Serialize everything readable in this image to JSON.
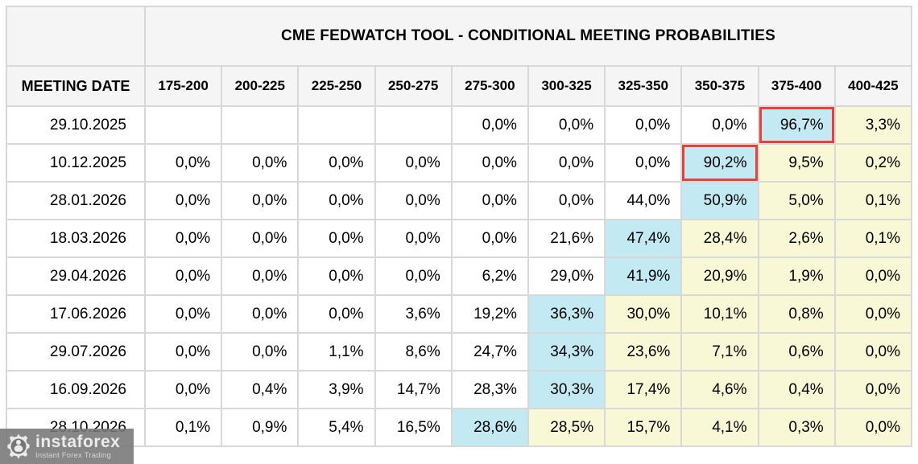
{
  "chart_data": {
    "type": "table",
    "title": "CME FEDWATCH TOOL - CONDITIONAL MEETING PROBABILITIES",
    "row_header": "MEETING DATE",
    "rate_bins": [
      "175-200",
      "200-225",
      "225-250",
      "250-275",
      "275-300",
      "300-325",
      "325-350",
      "350-375",
      "375-400",
      "400-425"
    ],
    "rows": [
      {
        "date": "29.10.2025",
        "values": [
          "",
          "",
          "",
          "",
          "0,0%",
          "0,0%",
          "0,0%",
          "0,0%",
          "96,7%",
          "3,3%"
        ],
        "styles": [
          "",
          "",
          "",
          "",
          "",
          "",
          "",
          "",
          "cr",
          "y"
        ]
      },
      {
        "date": "10.12.2025",
        "values": [
          "0,0%",
          "0,0%",
          "0,0%",
          "0,0%",
          "0,0%",
          "0,0%",
          "0,0%",
          "90,2%",
          "9,5%",
          "0,2%"
        ],
        "styles": [
          "",
          "",
          "",
          "",
          "",
          "",
          "",
          "cr",
          "y",
          "y"
        ]
      },
      {
        "date": "28.01.2026",
        "values": [
          "0,0%",
          "0,0%",
          "0,0%",
          "0,0%",
          "0,0%",
          "0,0%",
          "44,0%",
          "50,9%",
          "5,0%",
          "0,1%"
        ],
        "styles": [
          "",
          "",
          "",
          "",
          "",
          "",
          "",
          "c",
          "y",
          "y"
        ]
      },
      {
        "date": "18.03.2026",
        "values": [
          "0,0%",
          "0,0%",
          "0,0%",
          "0,0%",
          "0,0%",
          "21,6%",
          "47,4%",
          "28,4%",
          "2,6%",
          "0,1%"
        ],
        "styles": [
          "",
          "",
          "",
          "",
          "",
          "",
          "c",
          "y",
          "y",
          "y"
        ]
      },
      {
        "date": "29.04.2026",
        "values": [
          "0,0%",
          "0,0%",
          "0,0%",
          "0,0%",
          "6,2%",
          "29,0%",
          "41,9%",
          "20,9%",
          "1,9%",
          "0,0%"
        ],
        "styles": [
          "",
          "",
          "",
          "",
          "",
          "",
          "c",
          "y",
          "y",
          "y"
        ]
      },
      {
        "date": "17.06.2026",
        "values": [
          "0,0%",
          "0,0%",
          "0,0%",
          "3,6%",
          "19,2%",
          "36,3%",
          "30,0%",
          "10,1%",
          "0,8%",
          "0,0%"
        ],
        "styles": [
          "",
          "",
          "",
          "",
          "",
          "c",
          "y",
          "y",
          "y",
          "y"
        ]
      },
      {
        "date": "29.07.2026",
        "values": [
          "0,0%",
          "0,0%",
          "1,1%",
          "8,6%",
          "24,7%",
          "34,3%",
          "23,6%",
          "7,1%",
          "0,6%",
          "0,0%"
        ],
        "styles": [
          "",
          "",
          "",
          "",
          "",
          "c",
          "y",
          "y",
          "y",
          "y"
        ]
      },
      {
        "date": "16.09.2026",
        "values": [
          "0,0%",
          "0,4%",
          "3,9%",
          "14,7%",
          "28,3%",
          "30,3%",
          "17,4%",
          "4,6%",
          "0,4%",
          "0,0%"
        ],
        "styles": [
          "",
          "",
          "",
          "",
          "",
          "c",
          "y",
          "y",
          "y",
          "y"
        ]
      },
      {
        "date": "28.10.2026",
        "values": [
          "0,1%",
          "0,9%",
          "5,4%",
          "16,5%",
          "28,6%",
          "28,5%",
          "15,7%",
          "4,1%",
          "0,3%",
          "0,0%"
        ],
        "styles": [
          "",
          "",
          "",
          "",
          "c",
          "y",
          "y",
          "y",
          "y",
          "y"
        ]
      }
    ],
    "style_legend": {
      "c": "cyan highlight (highest probability)",
      "y": "pale yellow",
      "cr": "cyan highlight with red emphasis box"
    },
    "colors": {
      "cyan": "#c3eaf3",
      "yellow": "#f9f8d6",
      "red_box": "#e8413c",
      "header_bg": "#f5f5f5",
      "grid": "#d8d8d8"
    },
    "layout": {
      "grid": "on",
      "decimal_separator": ","
    }
  },
  "watermark": {
    "brand": "instaforex",
    "tagline": "Instant Forex Trading"
  }
}
